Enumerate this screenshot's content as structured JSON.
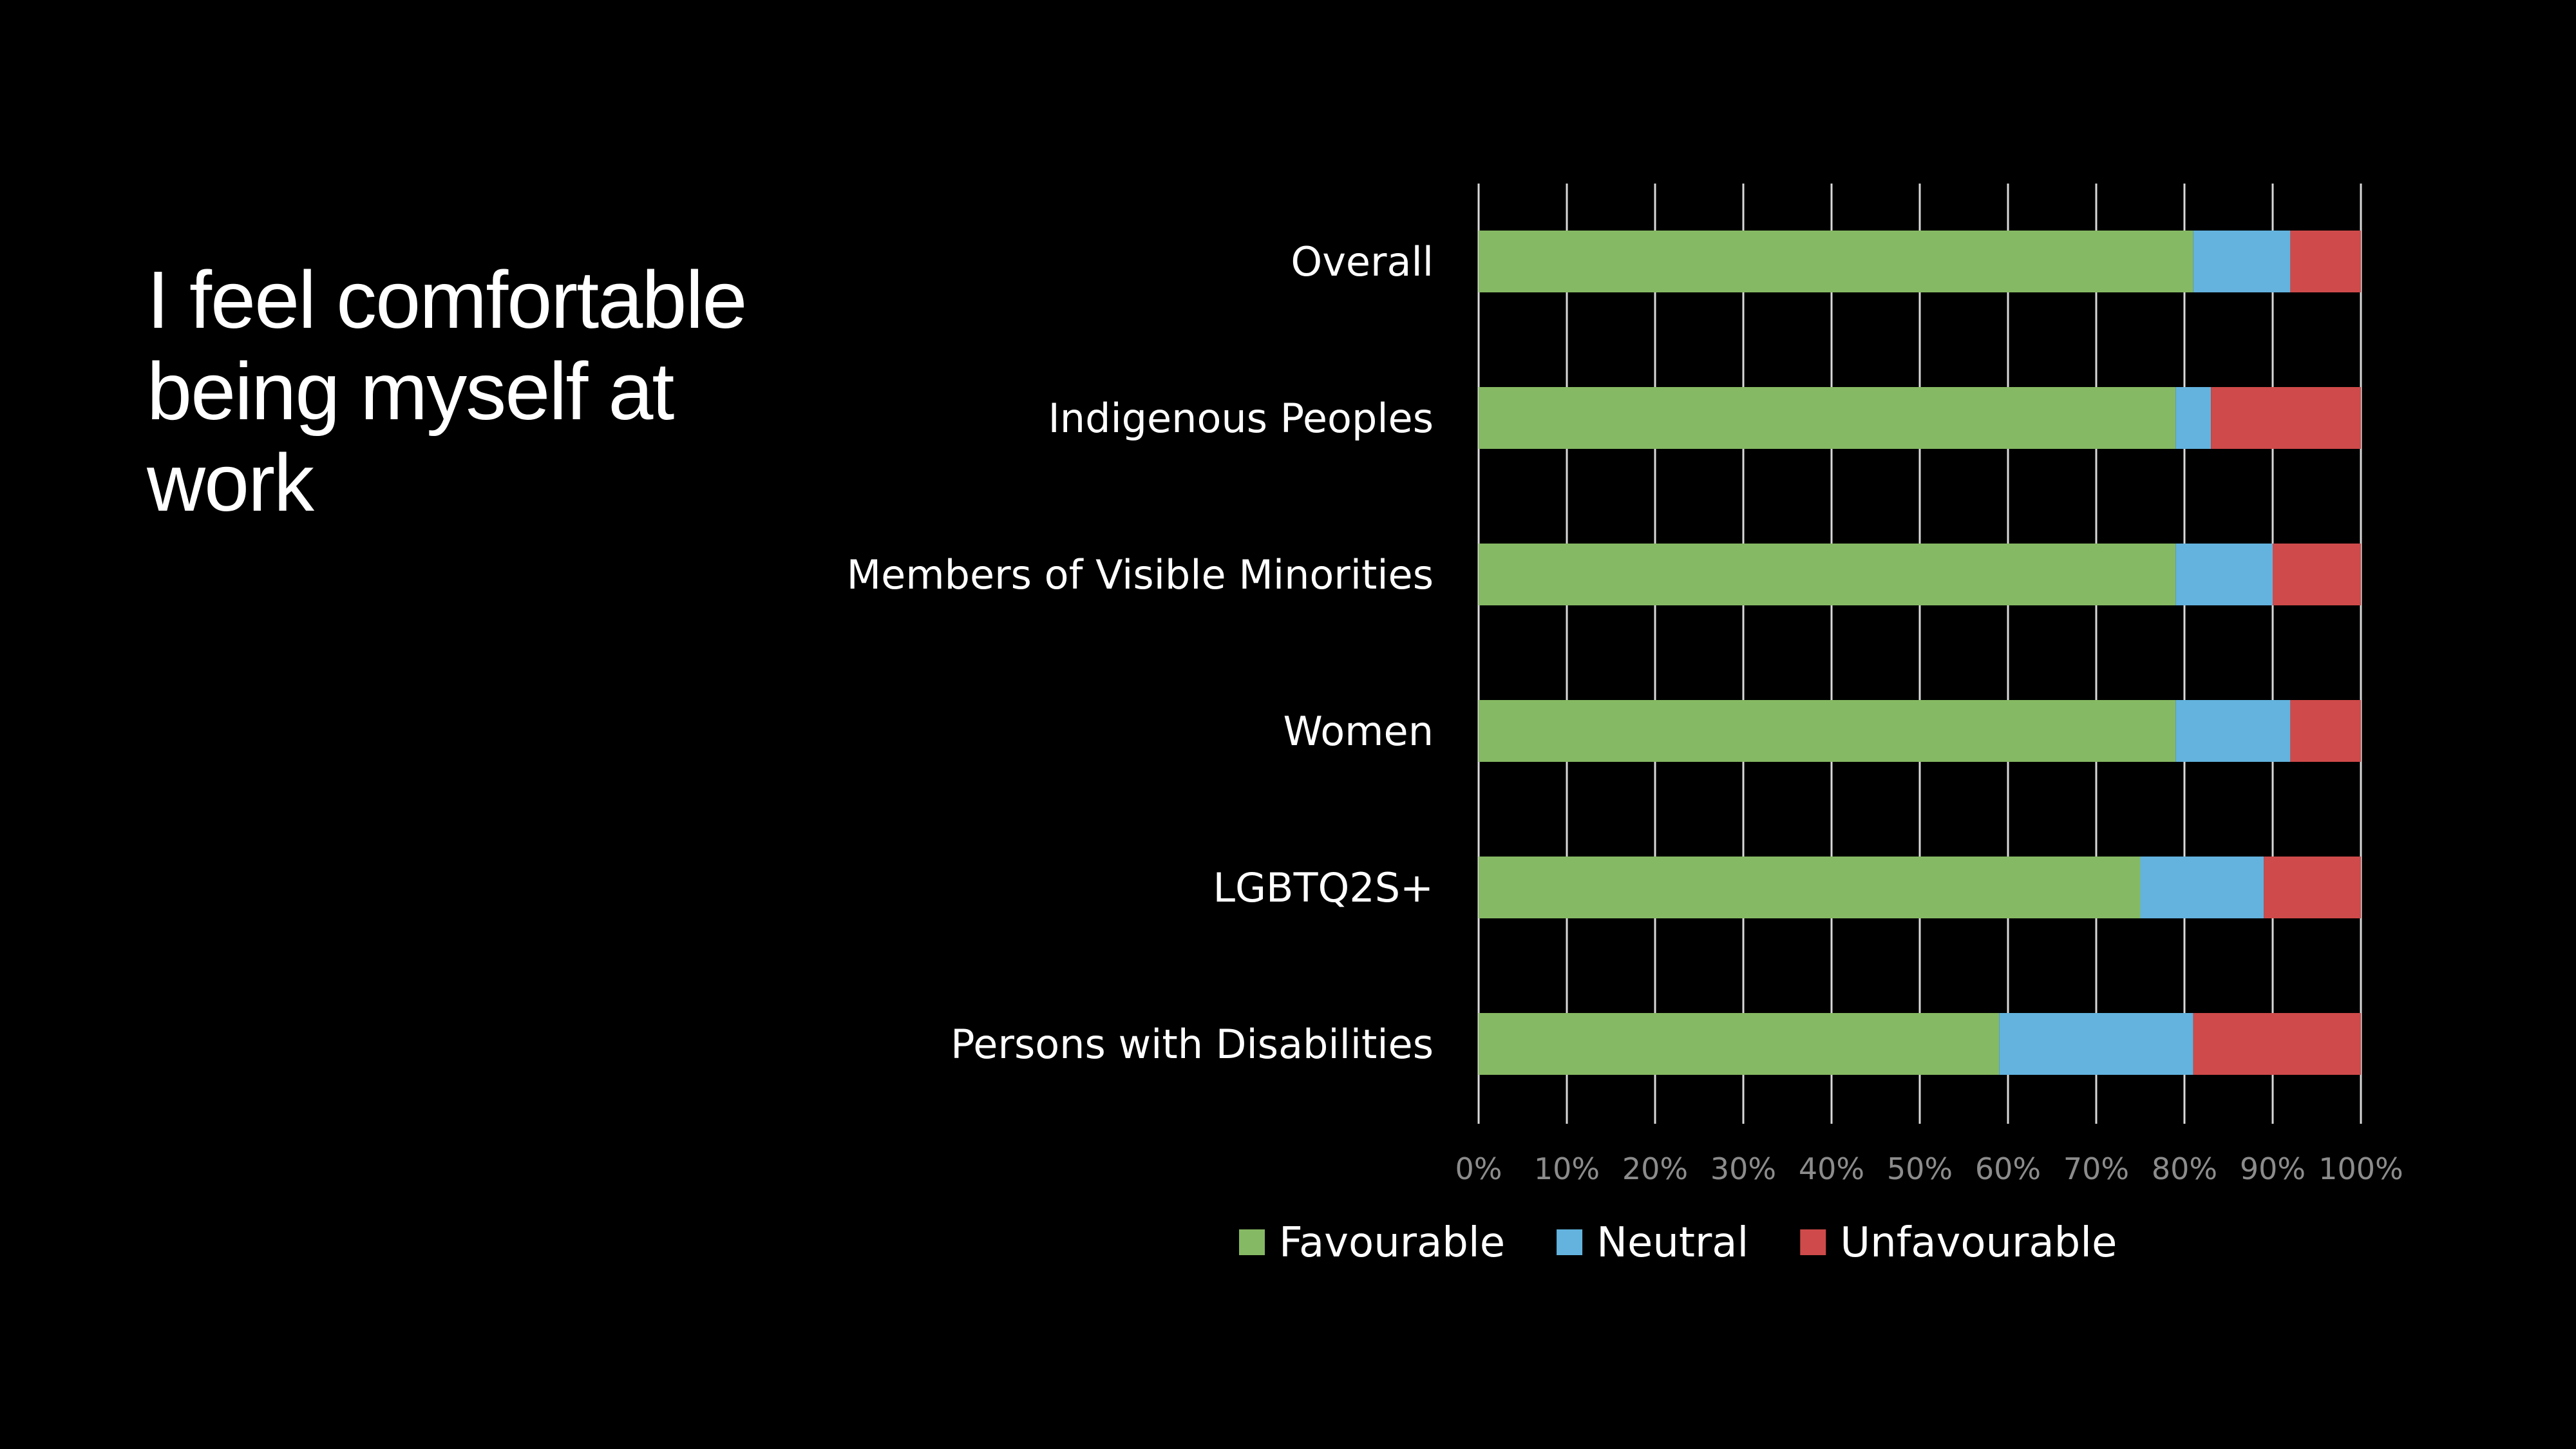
{
  "slide": {
    "title": "I feel comfortable being myself at work"
  },
  "chart_data": {
    "type": "bar",
    "orientation": "horizontal",
    "stacked": true,
    "title": "",
    "xlabel": "",
    "ylabel": "",
    "categories": [
      "Overall",
      "Indigenous Peoples",
      "Members of Visible Minorities",
      "Women",
      "LGBTQ2S+",
      "Persons with Disabilities"
    ],
    "series": [
      {
        "name": "Favourable",
        "color": "#86b963",
        "values": [
          81,
          79,
          79,
          79,
          75,
          59
        ]
      },
      {
        "name": "Neutral",
        "color": "#63b3de",
        "values": [
          11,
          4,
          11,
          13,
          14,
          22
        ]
      },
      {
        "name": "Unfavourable",
        "color": "#cf4a4a",
        "values": [
          8,
          17,
          10,
          8,
          11,
          19
        ]
      }
    ],
    "xlim": [
      0,
      100
    ],
    "x_ticks": [
      "0%",
      "10%",
      "20%",
      "30%",
      "40%",
      "50%",
      "60%",
      "70%",
      "80%",
      "90%",
      "100%"
    ],
    "grid": true,
    "legend": "bottom",
    "gridline_color": "#d9d9d9",
    "tick_label_color": "#8c8c8c"
  }
}
